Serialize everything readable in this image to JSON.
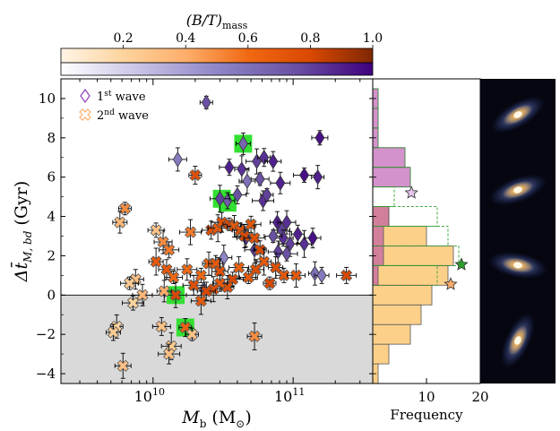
{
  "colorbar": {
    "label": "(B/T)",
    "label_sub": "mass",
    "ticks": [
      "0.2",
      "0.4",
      "0.6",
      "0.8",
      "1.0"
    ],
    "tick_values": [
      0.2,
      0.4,
      0.6,
      0.8,
      1.0
    ],
    "range": [
      0.0,
      1.0
    ],
    "top_colors": [
      "#fff4e6",
      "#fdd49e",
      "#fdae6b",
      "#f16913",
      "#d94801",
      "#7f2704"
    ],
    "bottom_colors": [
      "#ffffff",
      "#c9c3e6",
      "#8e86c6",
      "#6a51a3",
      "#3f007d"
    ]
  },
  "chart_data": {
    "type": "scatter",
    "xlabel": "M_b (M☉)",
    "ylabel": "Δt̄_M,bd (Gyr)",
    "xscale": "log",
    "xlim": [
      2200000000.0,
      370000000000.0
    ],
    "ylim": [
      -4.5,
      11
    ],
    "xticks": [
      {
        "value": 10000000000.0,
        "label": "10^10"
      },
      {
        "value": 100000000000.0,
        "label": "10^11"
      }
    ],
    "yticks": [
      -4,
      -2,
      0,
      2,
      4,
      6,
      8,
      10
    ],
    "shaded_region": {
      "y": [
        -4.5,
        0
      ],
      "color": "#d9d9d9"
    },
    "legend": {
      "placement": "top-left",
      "entries": [
        {
          "label": "1st wave",
          "marker": "diamond",
          "color": "#8c3fb8"
        },
        {
          "label": "2nd wave",
          "marker": "x",
          "color": "#fdae6b"
        }
      ]
    },
    "highlighted": [
      {
        "x": 44000000000.0,
        "y": 7.7
      },
      {
        "x": 31000000000.0,
        "y": 4.9
      },
      {
        "x": 34000000000.0,
        "y": 4.7
      },
      {
        "x": 14500000000.0,
        "y": 0.0
      },
      {
        "x": 17000000000.0,
        "y": -1.65
      }
    ],
    "series": [
      {
        "name": "1st wave",
        "marker": "diamond",
        "points": [
          {
            "x": 24000000000.0,
            "y": 9.8,
            "c": 0.75
          },
          {
            "x": 44000000000.0,
            "y": 7.7,
            "c": 0.65
          },
          {
            "x": 155000000000.0,
            "y": 8.0,
            "c": 0.95
          },
          {
            "x": 15000000000.0,
            "y": 6.9,
            "c": 0.55
          },
          {
            "x": 35000000000.0,
            "y": 6.5,
            "c": 0.9
          },
          {
            "x": 55000000000.0,
            "y": 6.8,
            "c": 0.8
          },
          {
            "x": 62000000000.0,
            "y": 7.0,
            "c": 0.85
          },
          {
            "x": 43000000000.0,
            "y": 6.4,
            "c": 0.85
          },
          {
            "x": 72000000000.0,
            "y": 6.8,
            "c": 0.9
          },
          {
            "x": 58000000000.0,
            "y": 5.9,
            "c": 0.75
          },
          {
            "x": 81000000000.0,
            "y": 5.7,
            "c": 0.9
          },
          {
            "x": 120000000000.0,
            "y": 6.1,
            "c": 0.95
          },
          {
            "x": 150000000000.0,
            "y": 6.0,
            "c": 0.9
          },
          {
            "x": 34000000000.0,
            "y": 4.8,
            "c": 0.7
          },
          {
            "x": 47000000000.0,
            "y": 5.8,
            "c": 0.6
          },
          {
            "x": 40000000000.0,
            "y": 5.1,
            "c": 0.75
          },
          {
            "x": 30000000000.0,
            "y": 4.9,
            "c": 0.8
          },
          {
            "x": 61000000000.0,
            "y": 4.8,
            "c": 0.85
          },
          {
            "x": 65000000000.0,
            "y": 5.1,
            "c": 0.8
          },
          {
            "x": 77000000000.0,
            "y": 3.7,
            "c": 0.9
          },
          {
            "x": 83000000000.0,
            "y": 3.3,
            "c": 0.8
          },
          {
            "x": 90000000000.0,
            "y": 3.7,
            "c": 0.85
          },
          {
            "x": 85000000000.0,
            "y": 2.9,
            "c": 0.85
          },
          {
            "x": 95000000000.0,
            "y": 2.6,
            "c": 0.8
          },
          {
            "x": 108000000000.0,
            "y": 3.1,
            "c": 0.9
          },
          {
            "x": 120000000000.0,
            "y": 2.6,
            "c": 0.85
          },
          {
            "x": 138000000000.0,
            "y": 2.9,
            "c": 0.95
          },
          {
            "x": 72000000000.0,
            "y": 3.0,
            "c": 0.75
          },
          {
            "x": 78000000000.0,
            "y": 2.2,
            "c": 0.8
          },
          {
            "x": 90000000000.0,
            "y": 2.1,
            "c": 0.75
          },
          {
            "x": 143000000000.0,
            "y": 1.1,
            "c": 0.6
          },
          {
            "x": 160000000000.0,
            "y": 1.0,
            "c": 0.55
          },
          {
            "x": 32000000000.0,
            "y": 1.9,
            "c": 0.5
          },
          {
            "x": 46000000000.0,
            "y": 2.9,
            "c": 0.85
          },
          {
            "x": 53000000000.0,
            "y": 2.3,
            "c": 0.8
          },
          {
            "x": 23000000000.0,
            "y": 0.3,
            "c": 0.5
          }
        ]
      },
      {
        "name": "2nd wave",
        "marker": "x",
        "points": [
          {
            "x": 6300000000.0,
            "y": 4.4,
            "c": 0.5
          },
          {
            "x": 5800000000.0,
            "y": 3.7,
            "c": 0.35
          },
          {
            "x": 10500000000.0,
            "y": 3.3,
            "c": 0.3
          },
          {
            "x": 11800000000.0,
            "y": 2.7,
            "c": 0.5
          },
          {
            "x": 13000000000.0,
            "y": 2.3,
            "c": 0.55
          },
          {
            "x": 18500000000.0,
            "y": 3.2,
            "c": 0.55
          },
          {
            "x": 20000000000.0,
            "y": 6.1,
            "c": 0.75
          },
          {
            "x": 10500000000.0,
            "y": 1.7,
            "c": 0.7
          },
          {
            "x": 12500000000.0,
            "y": 1.3,
            "c": 0.7
          },
          {
            "x": 14000000000.0,
            "y": 0.9,
            "c": 0.6
          },
          {
            "x": 17500000000.0,
            "y": 1.3,
            "c": 0.6
          },
          {
            "x": 22000000000.0,
            "y": 1.0,
            "c": 0.6
          },
          {
            "x": 25000000000.0,
            "y": 1.6,
            "c": 0.65
          },
          {
            "x": 28000000000.0,
            "y": 1.6,
            "c": 0.7
          },
          {
            "x": 30000000000.0,
            "y": 1.2,
            "c": 0.75
          },
          {
            "x": 26000000000.0,
            "y": 3.3,
            "c": 0.75
          },
          {
            "x": 29000000000.0,
            "y": 3.4,
            "c": 0.7
          },
          {
            "x": 31000000000.0,
            "y": 3.7,
            "c": 0.75
          },
          {
            "x": 35000000000.0,
            "y": 3.6,
            "c": 0.8
          },
          {
            "x": 38000000000.0,
            "y": 3.5,
            "c": 0.7
          },
          {
            "x": 42000000000.0,
            "y": 3.3,
            "c": 0.75
          },
          {
            "x": 45000000000.0,
            "y": 3.0,
            "c": 0.8
          },
          {
            "x": 50000000000.0,
            "y": 3.6,
            "c": 0.7
          },
          {
            "x": 53000000000.0,
            "y": 2.9,
            "c": 0.75
          },
          {
            "x": 58000000000.0,
            "y": 2.3,
            "c": 0.8
          },
          {
            "x": 62000000000.0,
            "y": 1.7,
            "c": 0.7
          },
          {
            "x": 54000000000.0,
            "y": 1.3,
            "c": 0.75
          },
          {
            "x": 48000000000.0,
            "y": 0.9,
            "c": 0.7
          },
          {
            "x": 41000000000.0,
            "y": 1.4,
            "c": 0.65
          },
          {
            "x": 37000000000.0,
            "y": 0.8,
            "c": 0.8
          },
          {
            "x": 34000000000.0,
            "y": 0.4,
            "c": 0.75
          },
          {
            "x": 30000000000.0,
            "y": 0.6,
            "c": 0.7
          },
          {
            "x": 27000000000.0,
            "y": 0.3,
            "c": 0.75
          },
          {
            "x": 24000000000.0,
            "y": 0.2,
            "c": 0.8
          },
          {
            "x": 22000000000.0,
            "y": -0.3,
            "c": 0.7
          },
          {
            "x": 19500000000.0,
            "y": 0.5,
            "c": 0.75
          },
          {
            "x": 68000000000.0,
            "y": 0.6,
            "c": 0.8
          },
          {
            "x": 75000000000.0,
            "y": 1.4,
            "c": 0.75
          },
          {
            "x": 86000000000.0,
            "y": 1.0,
            "c": 0.7
          },
          {
            "x": 105000000000.0,
            "y": 1.0,
            "c": 0.7
          },
          {
            "x": 240000000000.0,
            "y": 1.0,
            "c": 0.8
          },
          {
            "x": 14500000000.0,
            "y": 0.0,
            "c": 0.8
          },
          {
            "x": 17000000000.0,
            "y": -1.65,
            "c": 0.65
          },
          {
            "x": 53000000000.0,
            "y": -2.1,
            "c": 0.5
          },
          {
            "x": 7500000000.0,
            "y": 0.8,
            "c": 0.3
          },
          {
            "x": 6800000000.0,
            "y": 0.6,
            "c": 0.25
          },
          {
            "x": 8400000000.0,
            "y": 0.0,
            "c": 0.35
          },
          {
            "x": 7200000000.0,
            "y": -0.4,
            "c": 0.2
          },
          {
            "x": 5500000000.0,
            "y": -1.6,
            "c": 0.2
          },
          {
            "x": 5200000000.0,
            "y": -1.9,
            "c": 0.25
          },
          {
            "x": 6100000000.0,
            "y": -3.6,
            "c": 0.3
          },
          {
            "x": 11500000000.0,
            "y": -1.6,
            "c": 0.3
          },
          {
            "x": 13500000000.0,
            "y": -2.6,
            "c": 0.25
          },
          {
            "x": 13000000000.0,
            "y": -3.0,
            "c": 0.3
          },
          {
            "x": 19000000000.0,
            "y": -2.0,
            "c": 0.3
          },
          {
            "x": 12000000000.0,
            "y": 0.2,
            "c": 0.4
          }
        ]
      }
    ]
  },
  "histogram": {
    "xlabel": "Frequency",
    "xticks": [
      {
        "value": 10,
        "label": "10"
      },
      {
        "value": 20,
        "label": "20"
      }
    ],
    "xlim": [
      0,
      20
    ],
    "bin_edges": [
      -4.5,
      -3.5,
      -2.5,
      -1.5,
      -0.5,
      0.5,
      1.5,
      2.5,
      3.5,
      4.5,
      5.5,
      6.5,
      7.5,
      8.5,
      9.5,
      10.5
    ],
    "first_wave_counts": [
      0,
      0,
      0,
      0,
      0,
      1,
      2,
      2,
      3,
      0,
      7,
      6,
      1,
      1,
      1
    ],
    "second_wave_counts": [
      1,
      3,
      7,
      9,
      11,
      14,
      15,
      10,
      3,
      0,
      0,
      0,
      0,
      0,
      0
    ],
    "dashed_counts": [
      0,
      0,
      0,
      0,
      0,
      12,
      16,
      14,
      12,
      4,
      7,
      6,
      1,
      1,
      1
    ],
    "stars": [
      {
        "series": "2nd wave",
        "frequency": 14.5,
        "y": 0.55,
        "color": "#fdae6b"
      },
      {
        "series": "1st wave",
        "frequency": 16.5,
        "y": 1.55,
        "color": "#2ca02c"
      },
      {
        "series": "1st wave",
        "frequency": 7.2,
        "y": 5.2,
        "color": "#e6c8ef"
      }
    ]
  },
  "side_images": {
    "count": 4,
    "descriptions": [
      "spiral-galaxy-1",
      "spiral-galaxy-2",
      "spiral-galaxy-3",
      "spiral-galaxy-4"
    ]
  },
  "labels": {
    "legend_first": "1",
    "legend_first_sup": "st",
    "legend_first_rest": " wave",
    "legend_second": "2",
    "legend_second_sup": "nd",
    "legend_second_rest": " wave",
    "y_main": "Δt̄",
    "y_sub": "M, bd",
    "y_unit": " (Gyr)",
    "x_main": "M",
    "x_sub": "b",
    "x_unit": " (M",
    "x_unit_sub": "⊙",
    "x_unit_close": ")",
    "tick_10": "10",
    "tick_10_exp": "10",
    "tick_11_exp": "11"
  }
}
